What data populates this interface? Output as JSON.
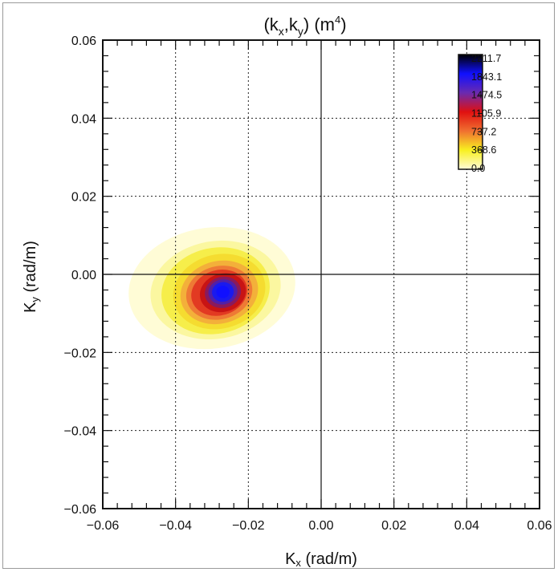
{
  "chart_data": {
    "type": "heatmap",
    "title": "(k , k )  (m⁴)",
    "title_subscripts": [
      "x",
      "y"
    ],
    "xlabel": "K",
    "xlabel_sub": "x",
    "xlabel_unit": " (rad/m)",
    "ylabel": "K",
    "ylabel_sub": "y",
    "ylabel_unit": " (rad/m)",
    "xlim": [
      -0.06,
      0.06
    ],
    "ylim": [
      -0.06,
      0.06
    ],
    "x_ticks": [
      "-0.06",
      "-0.04",
      "-0.02",
      "0.00",
      "0.02",
      "0.04",
      "0.06"
    ],
    "y_ticks": [
      "-0.06",
      "-0.04",
      "-0.02",
      "0.00",
      "0.02",
      "0.04",
      "0.06"
    ],
    "grid": true,
    "grid_style": "dotted",
    "zero_lines": true,
    "colorbar": {
      "position": "top-right",
      "labels": [
        "2211.7",
        "1843.1",
        "1474.5",
        "1105.9",
        "737.2",
        "368.6",
        "0.0"
      ],
      "colors": [
        "#000000",
        "#1010ff",
        "#6a2ab0",
        "#e01010",
        "#f07030",
        "#f8f020",
        "#fffbd8"
      ]
    },
    "peak": {
      "x": -0.027,
      "y": -0.0045,
      "value": 2211.7
    },
    "contours": [
      {
        "level": 0.0,
        "x": -0.03,
        "y": -0.0035,
        "rx": 0.023,
        "ry": 0.0155,
        "rot": -8,
        "color": "#fffcd6"
      },
      {
        "level": 184.3,
        "x": -0.029,
        "y": -0.004,
        "rx": 0.018,
        "ry": 0.0125,
        "rot": -10,
        "color": "#fbf7a0"
      },
      {
        "level": 368.6,
        "x": -0.029,
        "y": -0.0042,
        "rx": 0.015,
        "ry": 0.011,
        "rot": -12,
        "color": "#f6ee4a"
      },
      {
        "level": 552.9,
        "x": -0.028,
        "y": -0.0044,
        "rx": 0.0128,
        "ry": 0.0095,
        "rot": -14,
        "color": "#f5dc30"
      },
      {
        "level": 737.2,
        "x": -0.028,
        "y": -0.0046,
        "rx": 0.0108,
        "ry": 0.008,
        "rot": -15,
        "color": "#f3b03a"
      },
      {
        "level": 921.5,
        "x": -0.028,
        "y": -0.0047,
        "rx": 0.0092,
        "ry": 0.0068,
        "rot": -15,
        "color": "#ee7a35"
      },
      {
        "level": 1105.9,
        "x": -0.028,
        "y": -0.0047,
        "rx": 0.0078,
        "ry": 0.0058,
        "rot": -16,
        "color": "#e23a22"
      },
      {
        "level": 1290.2,
        "x": -0.027,
        "y": -0.0047,
        "rx": 0.0064,
        "ry": 0.0049,
        "rot": -16,
        "color": "#c81414"
      },
      {
        "level": 1474.5,
        "x": -0.027,
        "y": -0.0046,
        "rx": 0.005,
        "ry": 0.004,
        "rot": -14,
        "color": "#8a1a5c"
      },
      {
        "level": 1658.8,
        "x": -0.027,
        "y": -0.0045,
        "rx": 0.004,
        "ry": 0.0032,
        "rot": -12,
        "color": "#5020a8"
      },
      {
        "level": 1843.1,
        "x": -0.027,
        "y": -0.0045,
        "rx": 0.003,
        "ry": 0.0025,
        "rot": -10,
        "color": "#1a1aee"
      },
      {
        "level": 2027.4,
        "x": -0.027,
        "y": -0.0045,
        "rx": 0.0018,
        "ry": 0.0016,
        "rot": 0,
        "color": "#1010ff"
      }
    ]
  }
}
